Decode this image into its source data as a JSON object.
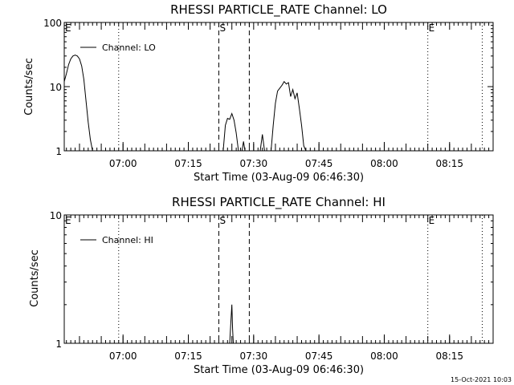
{
  "chart_data": [
    {
      "type": "line",
      "title": "RHESSI PARTICLE_RATE Channel: LO",
      "xlabel": "Start Time (03-Aug-09 06:46:30)",
      "ylabel": "Counts/sec",
      "yscale": "log",
      "ylim": [
        1,
        100
      ],
      "xlim": [
        "06:46:30",
        "08:25:00"
      ],
      "yticks": [
        {
          "v": 1,
          "label": "1"
        },
        {
          "v": 10,
          "label": "10"
        },
        {
          "v": 100,
          "label": "100"
        }
      ],
      "xticks": [
        "07:00",
        "07:15",
        "07:30",
        "07:45",
        "08:00",
        "08:15"
      ],
      "legend": {
        "label": "Channel: LO",
        "placement": "top-left"
      },
      "markers": [
        {
          "time": "06:46:30",
          "label": "E",
          "style": "none"
        },
        {
          "time": "06:59:00",
          "label": "",
          "style": "dotted"
        },
        {
          "time": "07:22:00",
          "label": "S",
          "style": "dashed"
        },
        {
          "time": "07:29:00",
          "label": "",
          "style": "dashed"
        },
        {
          "time": "08:10:00",
          "label": "E",
          "style": "dotted"
        },
        {
          "time": "08:22:30",
          "label": "",
          "style": "dotted"
        }
      ],
      "series": [
        {
          "name": "Channel: LO",
          "segments": [
            [
              [
                "06:46:30",
                12
              ],
              [
                "06:47:00",
                16
              ],
              [
                "06:47:30",
                22
              ],
              [
                "06:48:00",
                27
              ],
              [
                "06:48:30",
                30
              ],
              [
                "06:49:00",
                31
              ],
              [
                "06:49:30",
                30
              ],
              [
                "06:50:00",
                27
              ],
              [
                "06:50:30",
                21
              ],
              [
                "06:51:00",
                13
              ],
              [
                "06:51:30",
                6
              ],
              [
                "06:52:00",
                2.8
              ],
              [
                "06:52:30",
                1.5
              ],
              [
                "06:53:00",
                1
              ]
            ],
            [
              [
                "07:23:00",
                1
              ],
              [
                "07:23:30",
                2.5
              ],
              [
                "07:24:00",
                3.2
              ],
              [
                "07:24:30",
                3.1
              ],
              [
                "07:25:00",
                3.8
              ],
              [
                "07:25:30",
                3.0
              ],
              [
                "07:26:00",
                1.9
              ],
              [
                "07:26:30",
                1
              ]
            ],
            [
              [
                "07:27:20",
                1
              ],
              [
                "07:27:40",
                1.4
              ],
              [
                "07:28:00",
                1
              ]
            ],
            [
              [
                "07:31:30",
                1
              ],
              [
                "07:32:00",
                1.8
              ],
              [
                "07:32:30",
                1
              ]
            ],
            [
              [
                "07:34:00",
                1
              ],
              [
                "07:34:30",
                2.5
              ],
              [
                "07:35:00",
                5.5
              ],
              [
                "07:35:30",
                8.5
              ],
              [
                "07:36:30",
                10.5
              ],
              [
                "07:37:00",
                12
              ],
              [
                "07:37:30",
                11
              ],
              [
                "07:38:00",
                11.5
              ],
              [
                "07:38:30",
                7
              ],
              [
                "07:39:00",
                9
              ],
              [
                "07:39:30",
                6.5
              ],
              [
                "07:40:00",
                8
              ],
              [
                "07:40:30",
                4.5
              ],
              [
                "07:41:00",
                2.5
              ],
              [
                "07:41:30",
                1.2
              ],
              [
                "07:42:00",
                1
              ]
            ]
          ]
        }
      ]
    },
    {
      "type": "line",
      "title": "RHESSI PARTICLE_RATE Channel: HI",
      "xlabel": "Start Time (03-Aug-09 06:46:30)",
      "ylabel": "Counts/sec",
      "yscale": "log",
      "ylim": [
        1,
        10
      ],
      "xlim": [
        "06:46:30",
        "08:25:00"
      ],
      "yticks": [
        {
          "v": 1,
          "label": "1"
        },
        {
          "v": 10,
          "label": "10"
        }
      ],
      "xticks": [
        "07:00",
        "07:15",
        "07:30",
        "07:45",
        "08:00",
        "08:15"
      ],
      "legend": {
        "label": "Channel: HI",
        "placement": "top-left"
      },
      "markers": [
        {
          "time": "06:46:30",
          "label": "E",
          "style": "none"
        },
        {
          "time": "06:59:00",
          "label": "",
          "style": "dotted"
        },
        {
          "time": "07:22:00",
          "label": "S",
          "style": "dashed"
        },
        {
          "time": "07:29:00",
          "label": "",
          "style": "dashed"
        },
        {
          "time": "08:10:00",
          "label": "E",
          "style": "dotted"
        },
        {
          "time": "08:22:30",
          "label": "",
          "style": "dotted"
        }
      ],
      "series": [
        {
          "name": "Channel: HI",
          "segments": [
            [
              [
                "07:24:30",
                1
              ],
              [
                "07:24:50",
                1.6
              ],
              [
                "07:25:00",
                2.0
              ],
              [
                "07:25:10",
                1.3
              ],
              [
                "07:25:20",
                1
              ]
            ]
          ]
        }
      ]
    }
  ],
  "footer": {
    "timestamp": "15-Oct-2021 10:03"
  }
}
